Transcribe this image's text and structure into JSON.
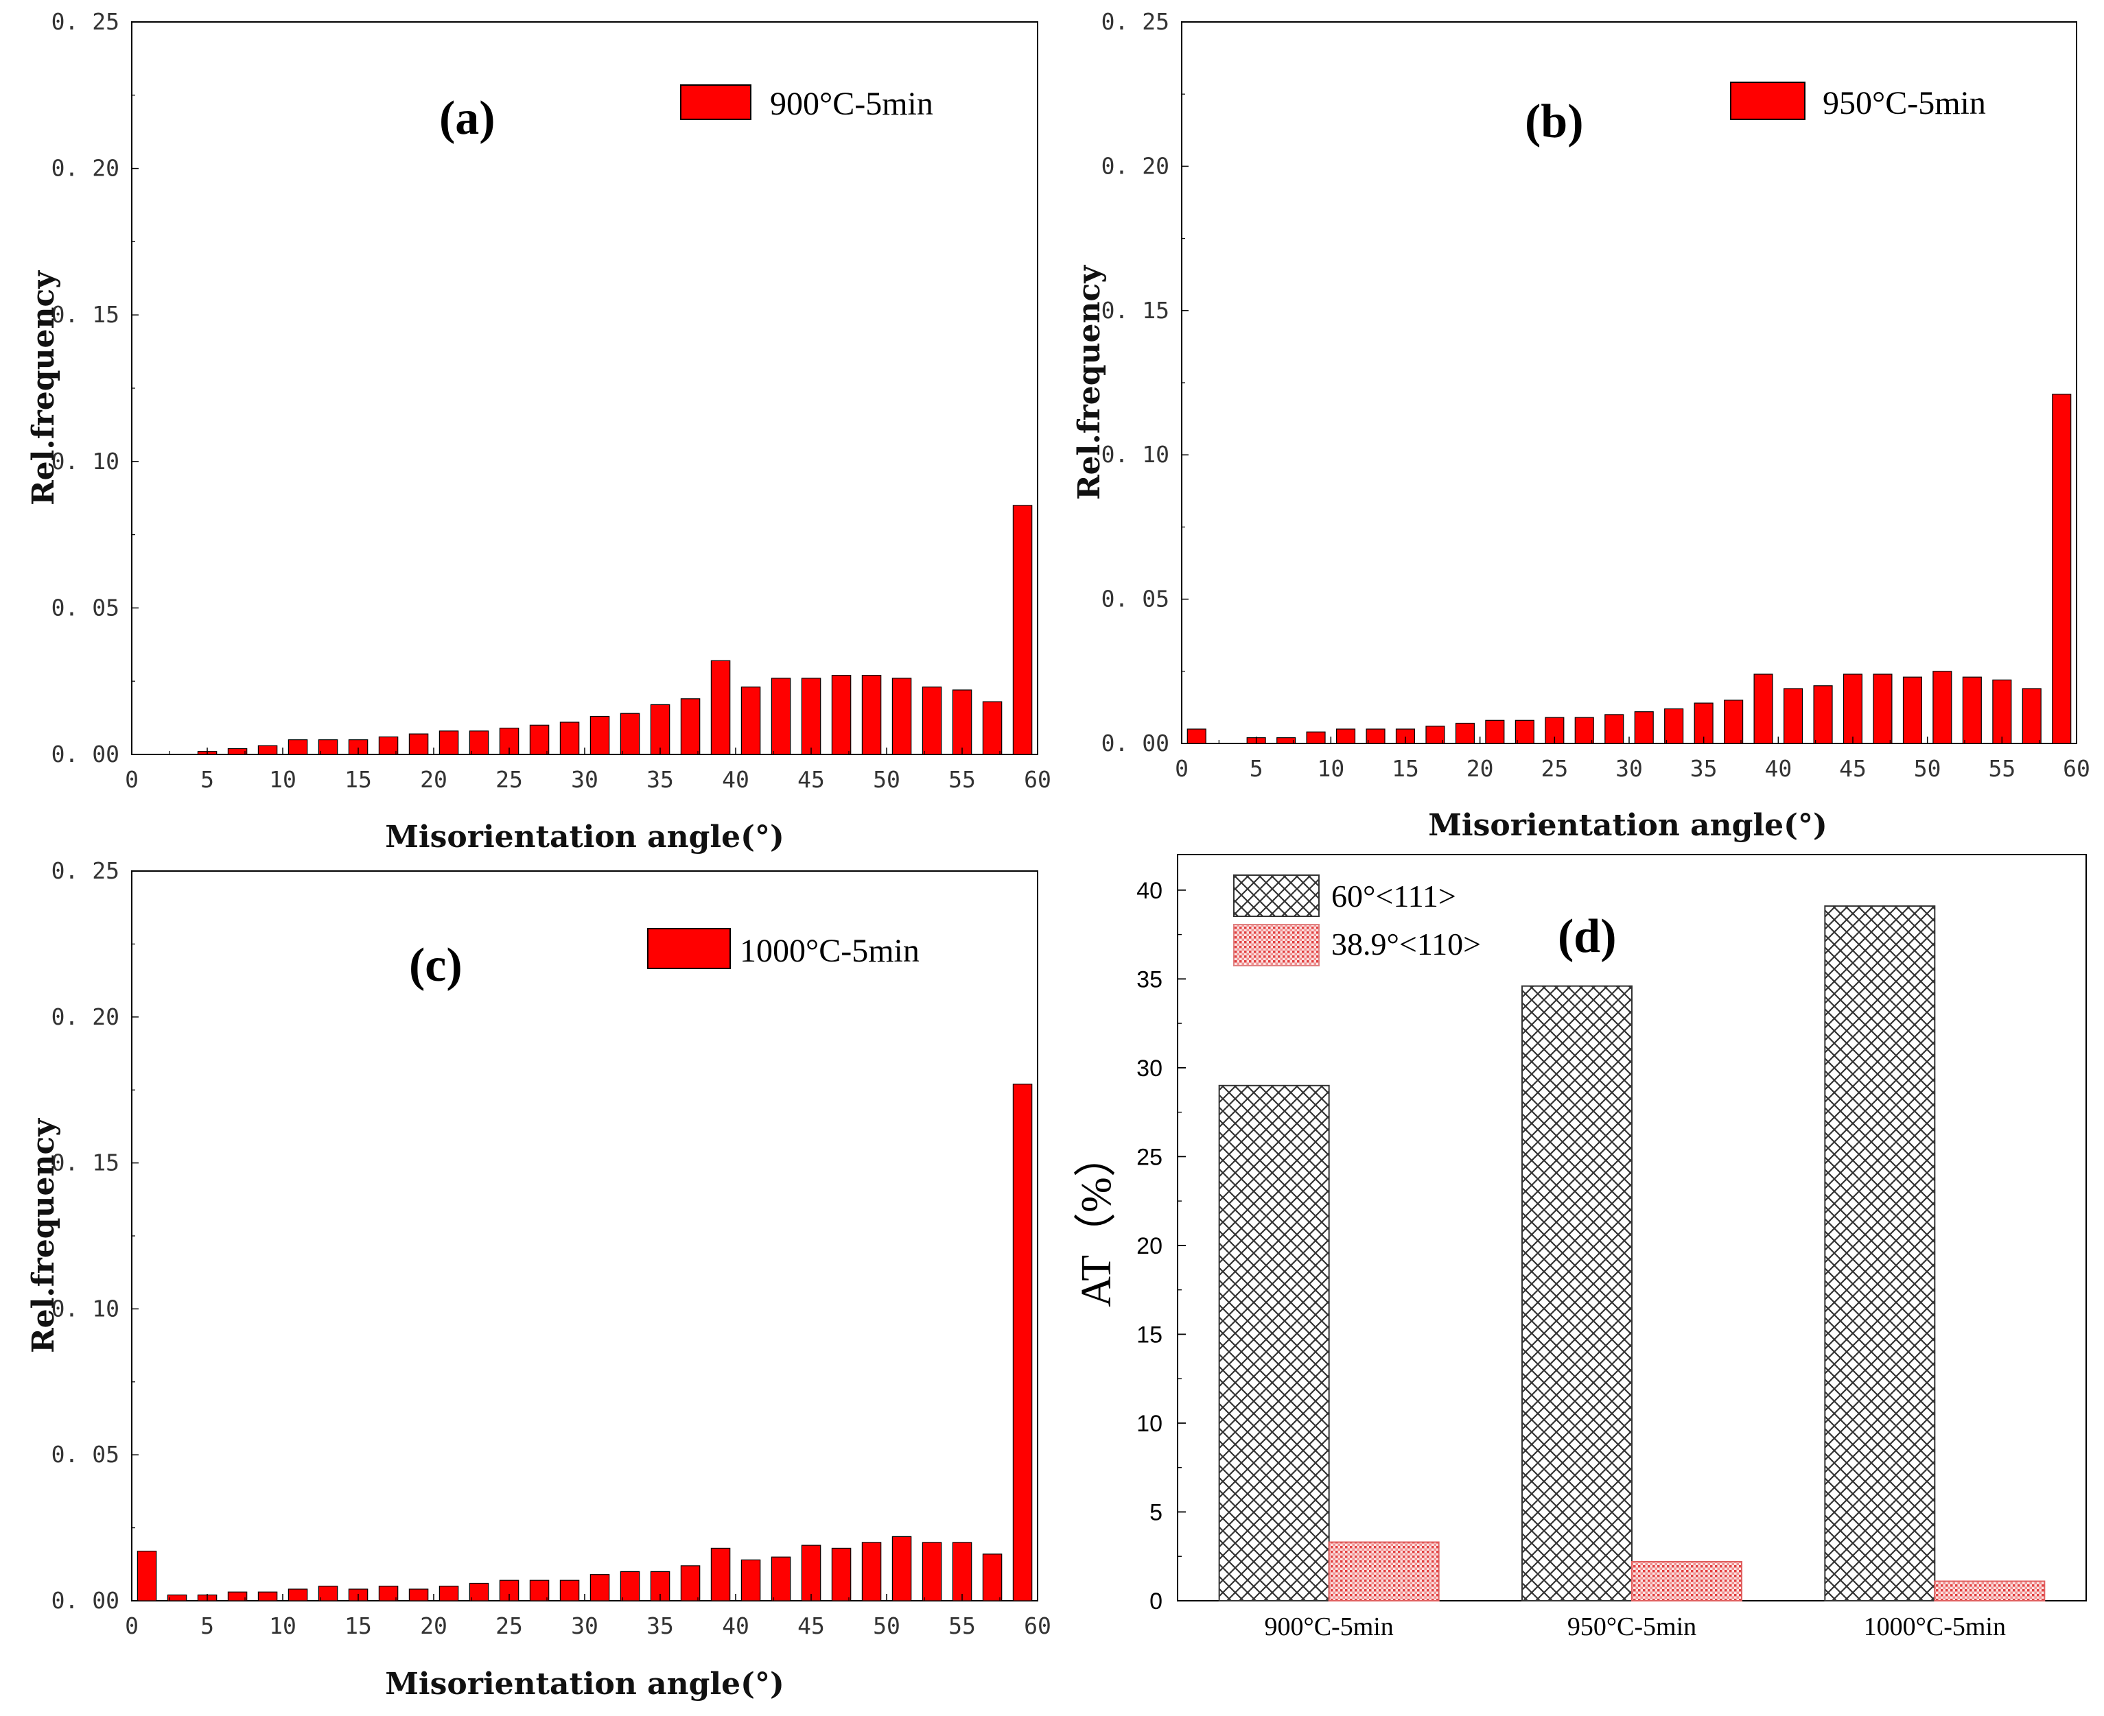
{
  "chart_data": [
    {
      "type": "bar",
      "panel": "(a)",
      "legend": "900°C-5min",
      "xlabel": "Misorientation angle(°)",
      "ylabel": "Rel.frequency",
      "xlim": [
        0,
        60
      ],
      "ylim": [
        0,
        0.25
      ],
      "xticks": [
        "0",
        "5",
        "10",
        "15",
        "20",
        "25",
        "30",
        "35",
        "40",
        "45",
        "50",
        "55",
        "60"
      ],
      "yticks": [
        "0. 00",
        "0. 05",
        "0. 10",
        "0. 15",
        "0. 20",
        "0. 25"
      ],
      "bar_color": "#ff0000",
      "x": [
        1,
        3,
        5,
        7,
        9,
        11,
        13,
        15,
        17,
        19,
        21,
        23,
        25,
        27,
        29,
        31,
        33,
        35,
        37,
        39,
        41,
        43,
        45,
        47,
        49,
        51,
        53,
        55,
        57,
        59
      ],
      "values": [
        0.0,
        0.0,
        0.001,
        0.002,
        0.003,
        0.005,
        0.005,
        0.005,
        0.006,
        0.007,
        0.008,
        0.008,
        0.009,
        0.01,
        0.011,
        0.013,
        0.014,
        0.017,
        0.019,
        0.032,
        0.023,
        0.026,
        0.026,
        0.027,
        0.027,
        0.026,
        0.023,
        0.022,
        0.018,
        0.085
      ]
    },
    {
      "type": "bar",
      "panel": "(b)",
      "legend": "950°C-5min",
      "xlabel": "Misorientation angle(°)",
      "ylabel": "Rel.frequency",
      "xlim": [
        0,
        60
      ],
      "ylim": [
        0,
        0.25
      ],
      "xticks": [
        "0",
        "5",
        "10",
        "15",
        "20",
        "25",
        "30",
        "35",
        "40",
        "45",
        "50",
        "55",
        "60"
      ],
      "yticks": [
        "0. 00",
        "0. 05",
        "0. 10",
        "0. 15",
        "0. 20",
        "0. 25"
      ],
      "bar_color": "#ff0000",
      "x": [
        1,
        3,
        5,
        7,
        9,
        11,
        13,
        15,
        17,
        19,
        21,
        23,
        25,
        27,
        29,
        31,
        33,
        35,
        37,
        39,
        41,
        43,
        45,
        47,
        49,
        51,
        53,
        55,
        57,
        59
      ],
      "values": [
        0.005,
        0.0,
        0.002,
        0.002,
        0.004,
        0.005,
        0.005,
        0.005,
        0.006,
        0.007,
        0.008,
        0.008,
        0.009,
        0.009,
        0.01,
        0.011,
        0.012,
        0.014,
        0.015,
        0.024,
        0.019,
        0.02,
        0.024,
        0.024,
        0.023,
        0.025,
        0.023,
        0.022,
        0.019,
        0.121
      ]
    },
    {
      "type": "bar",
      "panel": "(c)",
      "legend": "1000°C-5min",
      "xlabel": "Misorientation angle(°)",
      "ylabel": "Rel.frequency",
      "xlim": [
        0,
        60
      ],
      "ylim": [
        0,
        0.25
      ],
      "xticks": [
        "0",
        "5",
        "10",
        "15",
        "20",
        "25",
        "30",
        "35",
        "40",
        "45",
        "50",
        "55",
        "60"
      ],
      "yticks": [
        "0. 00",
        "0. 05",
        "0. 10",
        "0. 15",
        "0. 20",
        "0. 25"
      ],
      "bar_color": "#ff0000",
      "x": [
        1,
        3,
        5,
        7,
        9,
        11,
        13,
        15,
        17,
        19,
        21,
        23,
        25,
        27,
        29,
        31,
        33,
        35,
        37,
        39,
        41,
        43,
        45,
        47,
        49,
        51,
        53,
        55,
        57,
        59
      ],
      "values": [
        0.017,
        0.002,
        0.002,
        0.003,
        0.003,
        0.004,
        0.005,
        0.004,
        0.005,
        0.004,
        0.005,
        0.006,
        0.007,
        0.007,
        0.007,
        0.009,
        0.01,
        0.01,
        0.012,
        0.018,
        0.014,
        0.015,
        0.019,
        0.018,
        0.02,
        0.022,
        0.02,
        0.02,
        0.016,
        0.177
      ]
    },
    {
      "type": "bar",
      "panel": "(d)",
      "ylabel": "AT（%）",
      "xlabel": "",
      "ylim": [
        0,
        42
      ],
      "yticks": [
        "0",
        "5",
        "10",
        "15",
        "20",
        "25",
        "30",
        "35",
        "40"
      ],
      "categories": [
        "900°C-5min",
        "950°C-5min",
        "1000°C-5min"
      ],
      "series": [
        {
          "name": "60°<111>",
          "values": [
            29.0,
            34.6,
            39.1
          ],
          "color": "#333333",
          "pattern": "crosshatch"
        },
        {
          "name": "38.9°<110>",
          "values": [
            3.3,
            2.2,
            1.1
          ],
          "color": "#e03030",
          "pattern": "dots"
        }
      ]
    }
  ]
}
